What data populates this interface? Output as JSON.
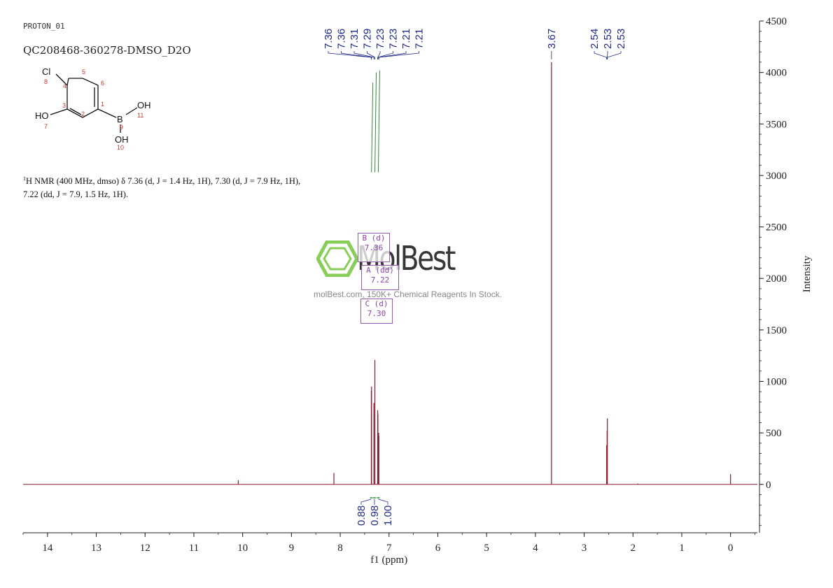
{
  "header": {
    "experiment": "PROTON_01",
    "sample": "QC208468-360278-DMSO_D2O"
  },
  "structure": {
    "atoms": {
      "cl": "Cl",
      "oh_left": "HO",
      "b": "B",
      "oh_right": "OH",
      "oh_bottom": "OH"
    },
    "numbers": [
      "1",
      "2",
      "3",
      "4",
      "5",
      "6",
      "7",
      "8",
      "9",
      "10",
      "11"
    ]
  },
  "nmr_text": {
    "prefix_sup": "1",
    "line": "H NMR (400 MHz, dmso) δ 7.36 (d, J = 1.4 Hz, 1H), 7.30 (d, J = 7.9 Hz, 1H), 7.22 (dd, J = 7.9, 1.5 Hz, 1H)."
  },
  "watermark": {
    "brand": "MolBest",
    "tagline": "molBest.com, 150K+ Chemical Reagents In Stock."
  },
  "colors": {
    "spectrum": "#8b1a2e",
    "label": "#1e2a8a",
    "integral": "#2e8b3a",
    "multiplet": "#8e44ad",
    "watermark": "#7ac943",
    "axis": "#222222"
  },
  "chart_data": {
    "type": "line",
    "xlabel": "f1 (ppm)",
    "ylabel": "Intensity",
    "xlim": [
      14.5,
      -0.55
    ],
    "ylim": [
      -470,
      4500
    ],
    "x_ticks": [
      14,
      13,
      12,
      11,
      10,
      9,
      8,
      7,
      6,
      5,
      4,
      3,
      2,
      1,
      0
    ],
    "y_ticks": [
      0,
      500,
      1000,
      1500,
      2000,
      2500,
      3000,
      3500,
      4000,
      4500
    ],
    "grid": false,
    "peaks": [
      {
        "ppm": 10.09,
        "height": 40
      },
      {
        "ppm": 8.13,
        "height": 110
      },
      {
        "ppm": 7.363,
        "height": 910
      },
      {
        "ppm": 7.358,
        "height": 950
      },
      {
        "ppm": 7.31,
        "height": 790
      },
      {
        "ppm": 7.29,
        "height": 1210
      },
      {
        "ppm": 7.232,
        "height": 720
      },
      {
        "ppm": 7.228,
        "height": 680
      },
      {
        "ppm": 7.212,
        "height": 500
      },
      {
        "ppm": 7.208,
        "height": 470
      },
      {
        "ppm": 3.67,
        "height": 4100
      },
      {
        "ppm": 2.54,
        "height": 380
      },
      {
        "ppm": 2.53,
        "height": 520
      },
      {
        "ppm": 2.525,
        "height": 640
      },
      {
        "ppm": 1.9,
        "height": 8
      },
      {
        "ppm": 0.0,
        "height": 100
      }
    ],
    "peak_labels": {
      "aromatic": [
        "7.36",
        "7.36",
        "7.31",
        "7.29",
        "7.23",
        "7.23",
        "7.21",
        "7.21"
      ],
      "single": [
        "3.67"
      ],
      "dmso": [
        "2.54",
        "2.53",
        "2.53"
      ]
    },
    "multiplets": [
      {
        "name": "B (d)",
        "shift": "7.36"
      },
      {
        "name": "A (dd)",
        "shift": "7.22"
      },
      {
        "name": "C (d)",
        "shift": "7.30"
      }
    ],
    "integrals": [
      {
        "from": 7.39,
        "to": 7.34,
        "value": "0.88"
      },
      {
        "from": 7.33,
        "to": 7.27,
        "value": "0.98"
      },
      {
        "from": 7.25,
        "to": 7.19,
        "value": "1.00"
      }
    ],
    "integral_curves_top": [
      {
        "ppm": 7.36,
        "level": 3900
      },
      {
        "ppm": 7.29,
        "level": 4000
      },
      {
        "ppm": 7.22,
        "level": 4020
      }
    ],
    "integral_curves_bottom": 3030
  }
}
